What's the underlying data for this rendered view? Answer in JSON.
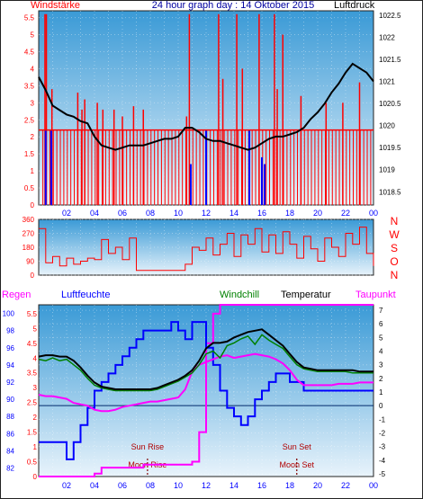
{
  "header": {
    "left_label": "Windstärke",
    "title": "24 hour graph day : 14 Oktober 2015",
    "right_label": "Luftdruck"
  },
  "colors": {
    "background": "#ffffff",
    "border": "#222222",
    "plot_top": "#3a9ad6",
    "plot_bottom": "#e8f3fb",
    "wind_red": "#ff0000",
    "wind_blue": "#0000ff",
    "pressure": "#000000",
    "humidity": "#0000ff",
    "dewpoint": "#ff00ff",
    "rain": "#ff00ff",
    "windchill": "#008000",
    "temperature": "#000000",
    "axis_blue": "#0000ff",
    "axis_red": "#ff0000",
    "axis_black": "#000000",
    "ref_line": "#002a6b"
  },
  "chart_data": [
    {
      "id": "wind_pressure",
      "type": "bar",
      "title": "24 hour graph day : 14 Oktober 2015",
      "left_axis": {
        "label": "Windstärke",
        "range": [
          0,
          5.7
        ],
        "ticks": [
          "0",
          "0.5",
          "1",
          "1.5",
          "2",
          "2.5",
          "3",
          "3.5",
          "4",
          "4.5",
          "5",
          "5.5"
        ]
      },
      "right_axis": {
        "label": "Luftdruck",
        "range": [
          1018.2,
          1022.6
        ],
        "ticks": [
          "1018.5",
          "1019",
          "1019.5",
          "1020",
          "1020.5",
          "1021",
          "1021.5",
          "1022",
          "1022.5"
        ]
      },
      "x_ticks": [
        "02",
        "04",
        "06",
        "08",
        "10",
        "12",
        "14",
        "16",
        "18",
        "20",
        "22",
        "00"
      ],
      "wind_base_level": 2.2,
      "wind_gust_hours": [
        0.45,
        0.55,
        0.95,
        2.8,
        3.1,
        3.3,
        4.2,
        4.6,
        5.4,
        6.0,
        6.8,
        7.5,
        10.6,
        10.8,
        12.9,
        13.2,
        14.2,
        14.6,
        15.8,
        16.9,
        17.1,
        17.5,
        18.8,
        20.6,
        21.8,
        23.0
      ],
      "wind_gust_values": [
        5.6,
        5.6,
        3.4,
        3.3,
        2.8,
        3.1,
        3.0,
        2.8,
        2.8,
        2.6,
        2.9,
        2.8,
        2.6,
        5.6,
        5.6,
        3.7,
        5.6,
        4.0,
        5.6,
        5.6,
        3.4,
        5.0,
        3.2,
        3.0,
        3.0,
        3.6
      ],
      "wind_blue_hours": [
        0.5,
        0.9,
        10.9,
        12.0,
        15.1,
        16.0,
        16.2
      ],
      "wind_blue_values": [
        2.2,
        2.2,
        1.2,
        2.2,
        2.2,
        1.4,
        1.2
      ],
      "pressure_hours": [
        0,
        0.5,
        1,
        1.5,
        2,
        2.5,
        3,
        3.5,
        4,
        4.5,
        5,
        5.5,
        6,
        6.5,
        7,
        7.5,
        8,
        8.5,
        9,
        9.5,
        10,
        10.5,
        11,
        11.5,
        12,
        12.5,
        13,
        13.5,
        14,
        14.5,
        15,
        15.5,
        16,
        16.5,
        17,
        17.5,
        18,
        18.5,
        19,
        19.5,
        20,
        20.5,
        21,
        21.5,
        22,
        22.5,
        23,
        23.5,
        24
      ],
      "pressure_values": [
        1021.1,
        1020.8,
        1020.45,
        1020.35,
        1020.25,
        1020.2,
        1020.1,
        1020.05,
        1019.75,
        1019.55,
        1019.5,
        1019.45,
        1019.5,
        1019.55,
        1019.55,
        1019.55,
        1019.6,
        1019.65,
        1019.7,
        1019.7,
        1019.75,
        1019.95,
        1019.95,
        1019.85,
        1019.7,
        1019.65,
        1019.65,
        1019.6,
        1019.55,
        1019.5,
        1019.45,
        1019.5,
        1019.6,
        1019.7,
        1019.75,
        1019.75,
        1019.8,
        1019.85,
        1019.95,
        1020.15,
        1020.3,
        1020.5,
        1020.75,
        1020.95,
        1021.2,
        1021.4,
        1021.3,
        1021.2,
        1021.0
      ]
    },
    {
      "id": "wind_direction",
      "type": "line",
      "y_range": [
        0,
        360
      ],
      "y_ticks": [
        "0",
        "90",
        "180",
        "270",
        "360"
      ],
      "compass_labels": [
        "N",
        "W",
        "S",
        "O",
        "N"
      ],
      "hours": [
        0,
        0.5,
        1,
        1.5,
        2,
        2.5,
        3,
        3.5,
        4,
        4.5,
        5,
        5.5,
        6,
        6.5,
        7,
        7.5,
        8,
        8.5,
        9,
        9.5,
        10,
        10.5,
        11,
        11.5,
        12,
        12.5,
        13,
        13.5,
        14,
        14.5,
        15,
        15.5,
        16,
        16.5,
        17,
        17.5,
        18,
        18.5,
        19,
        19.5,
        20,
        20.5,
        21,
        21.5,
        22,
        22.5,
        23,
        23.5,
        24
      ],
      "values": [
        300,
        80,
        120,
        60,
        110,
        70,
        90,
        110,
        100,
        230,
        140,
        180,
        100,
        240,
        30,
        30,
        30,
        30,
        30,
        30,
        30,
        70,
        180,
        160,
        240,
        130,
        200,
        270,
        120,
        260,
        200,
        300,
        150,
        260,
        140,
        280,
        200,
        110,
        250,
        170,
        90,
        240,
        180,
        120,
        270,
        200,
        310,
        140,
        60
      ]
    },
    {
      "id": "climate",
      "type": "line",
      "legend": [
        "Regen",
        "Luftfeuchte",
        "Windchill",
        "Temperatur",
        "Taupunkt"
      ],
      "rain_axis": {
        "label": "Regen",
        "range": [
          0,
          5.8
        ],
        "ticks": [
          "0",
          "0.5",
          "1",
          "1.5",
          "2",
          "2.5",
          "3",
          "3.5",
          "4",
          "4.5",
          "5",
          "5.5"
        ]
      },
      "humidity_axis": {
        "label": "Luftfeuchte",
        "range": [
          81,
          101
        ],
        "ticks": [
          "82",
          "84",
          "86",
          "88",
          "90",
          "92",
          "94",
          "96",
          "98",
          "100"
        ]
      },
      "temperature_axis": {
        "label": "Temperatur",
        "range": [
          -5.2,
          7.4
        ],
        "ticks": [
          "-5",
          "-4",
          "-3",
          "-2",
          "-1",
          "0",
          "1",
          "2",
          "3",
          "4",
          "5",
          "6",
          "7"
        ]
      },
      "x_ticks": [
        "02",
        "04",
        "06",
        "08",
        "10",
        "12",
        "14",
        "16",
        "18",
        "20",
        "22",
        "00"
      ],
      "events": [
        {
          "label": "Sun Rise",
          "hour": 7.8,
          "label_pos": "upper"
        },
        {
          "label": "Moon Rise",
          "hour": 7.8,
          "label_pos": "lower"
        },
        {
          "label": "Sun Set",
          "hour": 18.5,
          "label_pos": "upper"
        },
        {
          "label": "Moon Set",
          "hour": 18.5,
          "label_pos": "lower"
        }
      ],
      "hours": [
        0,
        0.5,
        1,
        1.5,
        2,
        2.5,
        3,
        3.5,
        4,
        4.5,
        5,
        5.5,
        6,
        6.5,
        7,
        7.5,
        8,
        8.5,
        9,
        9.5,
        10,
        10.5,
        11,
        11.5,
        12,
        12.5,
        13,
        13.5,
        14,
        14.5,
        15,
        15.5,
        16,
        16.5,
        17,
        17.5,
        18,
        18.5,
        19,
        19.5,
        20,
        20.5,
        21,
        21.5,
        22,
        22.5,
        23,
        23.5,
        24
      ],
      "temperature": [
        3.6,
        3.7,
        3.7,
        3.6,
        3.6,
        3.3,
        2.8,
        2.2,
        1.7,
        1.4,
        1.3,
        1.2,
        1.2,
        1.2,
        1.2,
        1.2,
        1.2,
        1.3,
        1.5,
        1.7,
        1.9,
        2.2,
        2.6,
        3.3,
        4.2,
        4.6,
        4.6,
        4.7,
        5.0,
        5.2,
        5.4,
        5.5,
        5.6,
        5.2,
        4.8,
        4.4,
        3.8,
        3.2,
        2.8,
        2.7,
        2.6,
        2.6,
        2.6,
        2.6,
        2.6,
        2.6,
        2.5,
        2.5,
        2.5
      ],
      "windchill": [
        3.4,
        3.3,
        3.5,
        3.3,
        3.4,
        3.0,
        2.6,
        2.0,
        1.5,
        1.3,
        1.2,
        1.1,
        1.1,
        1.1,
        1.1,
        1.1,
        1.1,
        1.2,
        1.4,
        1.6,
        1.8,
        2.1,
        2.4,
        3.0,
        3.8,
        4.0,
        3.5,
        4.4,
        4.6,
        4.9,
        5.1,
        4.5,
        5.2,
        4.8,
        4.5,
        4.2,
        3.6,
        3.0,
        2.7,
        2.6,
        2.5,
        2.5,
        2.5,
        2.5,
        2.5,
        2.4,
        2.4,
        2.4,
        2.4
      ],
      "dewpoint": [
        0.8,
        0.7,
        0.7,
        0.6,
        0.5,
        0.2,
        0.1,
        0.0,
        -0.3,
        -0.4,
        -0.4,
        -0.3,
        -0.1,
        0.0,
        0.1,
        0.2,
        0.3,
        0.3,
        0.4,
        0.5,
        0.6,
        1.2,
        2.5,
        3.0,
        3.2,
        3.4,
        3.6,
        3.7,
        3.5,
        3.6,
        3.7,
        3.8,
        3.7,
        3.6,
        3.4,
        3.1,
        2.6,
        1.9,
        1.5,
        1.5,
        1.5,
        1.5,
        1.5,
        1.6,
        1.6,
        1.6,
        1.7,
        1.7,
        1.7
      ],
      "humidity": [
        85,
        85,
        85,
        85,
        83,
        85,
        87,
        89,
        91,
        92,
        93,
        94,
        95,
        96,
        97,
        98,
        98,
        98,
        98,
        99,
        98,
        97,
        99,
        99,
        96,
        94,
        91,
        89,
        88,
        87,
        88,
        90,
        91,
        92,
        93,
        93,
        92,
        92,
        91,
        91,
        91,
        91,
        91,
        91,
        91,
        91,
        91,
        91,
        91
      ],
      "rain": [
        0,
        0,
        0,
        0,
        0,
        0,
        0,
        0,
        0.1,
        0.3,
        0.3,
        0.3,
        0.3,
        0.3,
        0.3,
        0.4,
        0.4,
        0.4,
        0.4,
        0.4,
        0.4,
        0.4,
        0.5,
        1.5,
        4.5,
        5.5,
        5.8,
        5.8,
        5.8,
        5.8,
        5.8,
        5.8,
        5.8,
        5.8,
        5.8,
        5.8,
        5.8,
        5.8,
        5.8,
        5.8,
        5.8,
        5.8,
        5.8,
        5.8,
        5.8,
        5.8,
        5.8,
        5.8,
        5.8
      ]
    }
  ]
}
